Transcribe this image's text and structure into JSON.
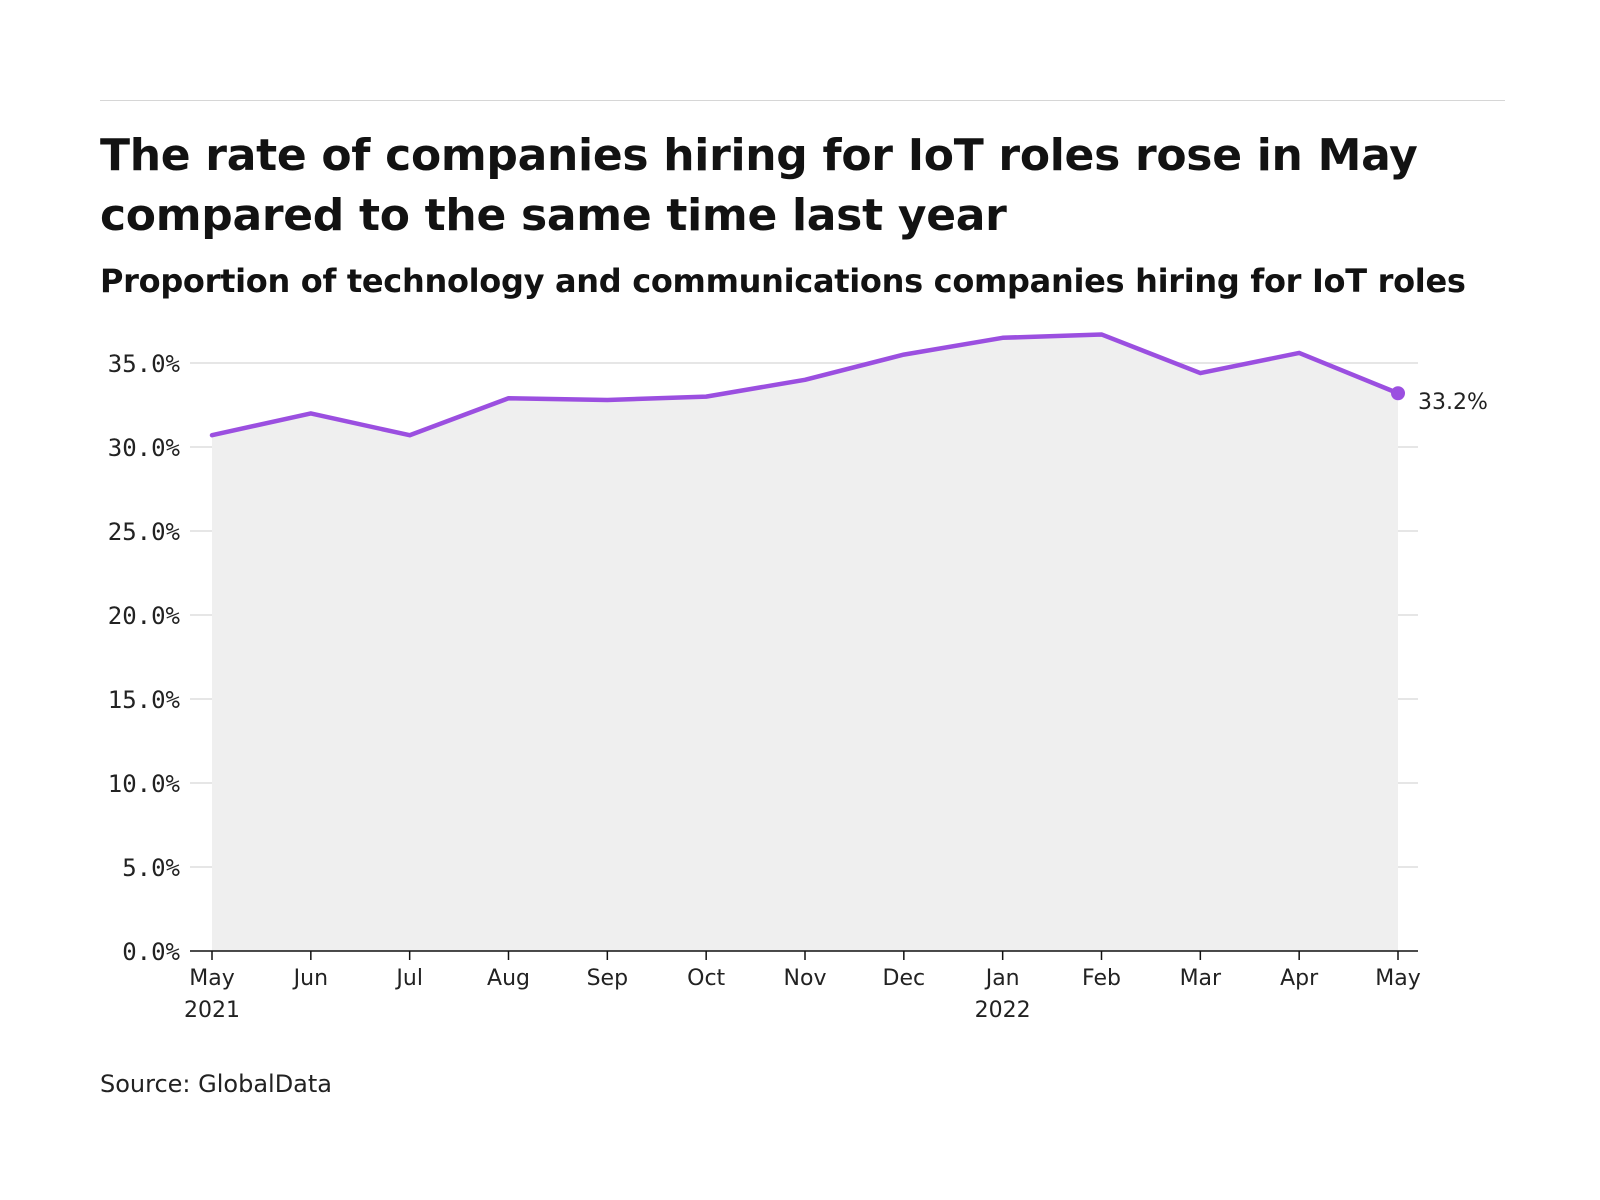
{
  "header": {
    "title": "The rate of companies hiring for IoT roles rose in May compared to the same time last year",
    "subtitle": "Proportion of technology and communications companies hiring for IoT roles"
  },
  "footer": {
    "source": "Source: GlobalData"
  },
  "colors": {
    "line": "#9b4fe0",
    "area": "#efefef",
    "grid": "#dedede",
    "axis": "#111111"
  },
  "chart_data": {
    "type": "area",
    "title": "The rate of companies hiring for IoT roles rose in May compared to the same time last year",
    "subtitle": "Proportion of technology and communications companies hiring for IoT roles",
    "xlabel": "",
    "ylabel": "",
    "x": [
      "May 2021",
      "Jun 2021",
      "Jul 2021",
      "Aug 2021",
      "Sep 2021",
      "Oct 2021",
      "Nov 2021",
      "Dec 2021",
      "Jan 2022",
      "Feb 2022",
      "Mar 2022",
      "Apr 2022",
      "May 2022"
    ],
    "x_tick_labels": [
      {
        "label": "May",
        "sub": "2021"
      },
      {
        "label": "Jun",
        "sub": ""
      },
      {
        "label": "Jul",
        "sub": ""
      },
      {
        "label": "Aug",
        "sub": ""
      },
      {
        "label": "Sep",
        "sub": ""
      },
      {
        "label": "Oct",
        "sub": ""
      },
      {
        "label": "Nov",
        "sub": ""
      },
      {
        "label": "Dec",
        "sub": ""
      },
      {
        "label": "Jan",
        "sub": "2022"
      },
      {
        "label": "Feb",
        "sub": ""
      },
      {
        "label": "Mar",
        "sub": ""
      },
      {
        "label": "Apr",
        "sub": ""
      },
      {
        "label": "May",
        "sub": ""
      }
    ],
    "series": [
      {
        "values": [
          30.7,
          32.0,
          30.7,
          32.9,
          32.8,
          33.0,
          34.0,
          35.5,
          36.5,
          36.7,
          34.4,
          35.6,
          33.2
        ]
      }
    ],
    "end_label": "33.2%",
    "ylim": [
      0,
      35
    ],
    "y_ticks": [
      0,
      5,
      10,
      15,
      20,
      25,
      30,
      35
    ],
    "y_tick_labels": [
      "0.0%",
      "5.0%",
      "10.0%",
      "15.0%",
      "20.0%",
      "25.0%",
      "30.0%",
      "35.0%"
    ],
    "grid": true,
    "legend": "none"
  }
}
